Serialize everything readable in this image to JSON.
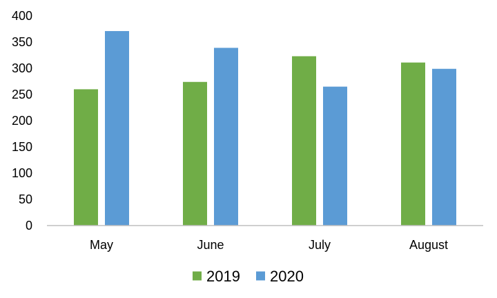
{
  "chart_data": {
    "type": "bar",
    "title": "",
    "xlabel": "",
    "ylabel": "",
    "categories": [
      "May",
      "June",
      "July",
      "August"
    ],
    "series": [
      {
        "name": "2019",
        "color": "#70ad47",
        "values": [
          260,
          274,
          323,
          311
        ]
      },
      {
        "name": "2020",
        "color": "#5b9bd5",
        "values": [
          371,
          339,
          265,
          299
        ]
      }
    ],
    "ylim": [
      0,
      400
    ],
    "yticks": [
      0,
      50,
      100,
      150,
      200,
      250,
      300,
      350,
      400
    ],
    "grid": false,
    "legend": {
      "position": "bottom"
    },
    "axis_color": "#bfbfbf"
  }
}
